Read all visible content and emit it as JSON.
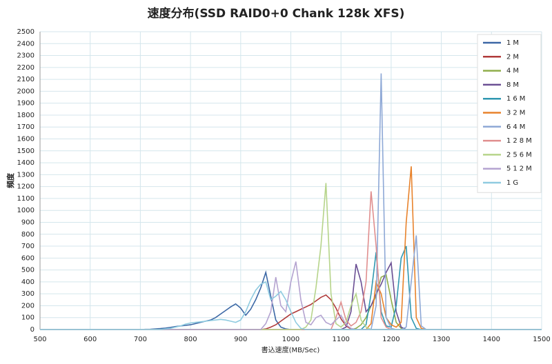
{
  "chart_data": {
    "type": "line",
    "title": "速度分布(SSD RAID0+0 Chank 128k XFS)",
    "x_label": "書込速度(MB/Sec)",
    "y_label": "頻度",
    "x": [
      500,
      510,
      520,
      530,
      540,
      550,
      560,
      570,
      580,
      590,
      600,
      610,
      620,
      630,
      640,
      650,
      660,
      670,
      680,
      690,
      700,
      710,
      720,
      730,
      740,
      750,
      760,
      770,
      780,
      790,
      800,
      810,
      820,
      830,
      840,
      850,
      860,
      870,
      880,
      890,
      900,
      910,
      920,
      930,
      940,
      950,
      960,
      970,
      980,
      990,
      1000,
      1010,
      1020,
      1030,
      1040,
      1050,
      1060,
      1070,
      1080,
      1090,
      1100,
      1110,
      1120,
      1130,
      1140,
      1150,
      1160,
      1170,
      1180,
      1190,
      1200,
      1210,
      1220,
      1230,
      1240,
      1250,
      1260,
      1270,
      1280,
      1290,
      1300,
      1310,
      1320,
      1330,
      1340,
      1350,
      1360,
      1370,
      1380,
      1390,
      1400,
      1410,
      1420,
      1430,
      1440,
      1450,
      1460,
      1470,
      1480,
      1490,
      1500
    ],
    "xlim": [
      500,
      1500
    ],
    "xticks": [
      500,
      600,
      700,
      800,
      900,
      1000,
      1100,
      1200,
      1300,
      1400,
      1500
    ],
    "ylim": [
      0,
      2500
    ],
    "yticks": [
      0,
      100,
      200,
      300,
      400,
      500,
      600,
      700,
      800,
      900,
      1000,
      1100,
      1200,
      1300,
      1400,
      1500,
      1600,
      1700,
      1800,
      1900,
      2000,
      2100,
      2200,
      2300,
      2400,
      2500
    ],
    "grid": true,
    "legend": "top-right",
    "series": [
      {
        "name": "1M",
        "color": "#3b67a5",
        "values": [
          0,
          0,
          0,
          0,
          0,
          0,
          0,
          0,
          0,
          0,
          0,
          0,
          0,
          0,
          0,
          0,
          0,
          0,
          0,
          0,
          0,
          2,
          3,
          5,
          8,
          12,
          18,
          25,
          30,
          35,
          40,
          50,
          60,
          70,
          80,
          100,
          130,
          160,
          190,
          215,
          180,
          120,
          170,
          250,
          350,
          480,
          280,
          80,
          20,
          5,
          0,
          0,
          0,
          0,
          0,
          0,
          0,
          0,
          0,
          0,
          0,
          0,
          0,
          0,
          0,
          0,
          0,
          0,
          0,
          0,
          0,
          0,
          0,
          0,
          0,
          0,
          0,
          0,
          0,
          0,
          0,
          0,
          0,
          0,
          0,
          0,
          0,
          0,
          0,
          0,
          0,
          0,
          0,
          0,
          0,
          0,
          0,
          0,
          0,
          0,
          0
        ]
      },
      {
        "name": "2M",
        "color": "#b03a3a",
        "values": [
          0,
          0,
          0,
          0,
          0,
          0,
          0,
          0,
          0,
          0,
          0,
          0,
          0,
          0,
          0,
          0,
          0,
          0,
          0,
          0,
          0,
          0,
          0,
          0,
          0,
          0,
          0,
          0,
          0,
          0,
          0,
          0,
          0,
          0,
          0,
          0,
          0,
          0,
          0,
          0,
          0,
          0,
          0,
          0,
          0,
          5,
          20,
          40,
          70,
          100,
          130,
          150,
          170,
          190,
          210,
          240,
          270,
          290,
          250,
          180,
          90,
          30,
          5,
          0,
          0,
          0,
          0,
          0,
          0,
          0,
          0,
          0,
          0,
          0,
          0,
          0,
          0,
          0,
          0,
          0,
          0,
          0,
          0,
          0,
          0,
          0,
          0,
          0,
          0,
          0,
          0,
          0,
          0,
          0,
          0,
          0,
          0,
          0,
          0,
          0,
          0
        ]
      },
      {
        "name": "4M",
        "color": "#8fad4a",
        "values": [
          0,
          0,
          0,
          0,
          0,
          0,
          0,
          0,
          0,
          0,
          0,
          0,
          0,
          0,
          0,
          0,
          0,
          0,
          0,
          0,
          0,
          0,
          0,
          0,
          0,
          0,
          0,
          0,
          0,
          0,
          0,
          0,
          0,
          0,
          0,
          0,
          0,
          0,
          0,
          0,
          0,
          0,
          0,
          0,
          0,
          0,
          0,
          0,
          0,
          0,
          0,
          0,
          0,
          0,
          0,
          0,
          0,
          0,
          0,
          0,
          0,
          0,
          0,
          10,
          40,
          100,
          200,
          280,
          440,
          460,
          250,
          60,
          10,
          0,
          0,
          0,
          0,
          0,
          0,
          0,
          0,
          0,
          0,
          0,
          0,
          0,
          0,
          0,
          0,
          0,
          0,
          0,
          0,
          0,
          0,
          0,
          0,
          0,
          0,
          0,
          0
        ]
      },
      {
        "name": "8M",
        "color": "#6a4e93",
        "values": [
          0,
          0,
          0,
          0,
          0,
          0,
          0,
          0,
          0,
          0,
          0,
          0,
          0,
          0,
          0,
          0,
          0,
          0,
          0,
          0,
          0,
          0,
          0,
          0,
          0,
          0,
          0,
          0,
          0,
          0,
          0,
          0,
          0,
          0,
          0,
          0,
          0,
          0,
          0,
          0,
          0,
          0,
          0,
          0,
          0,
          0,
          0,
          0,
          0,
          0,
          0,
          0,
          0,
          0,
          0,
          0,
          0,
          0,
          0,
          0,
          0,
          20,
          150,
          550,
          400,
          150,
          200,
          300,
          380,
          480,
          560,
          150,
          20,
          0,
          0,
          0,
          0,
          0,
          0,
          0,
          0,
          0,
          0,
          0,
          0,
          0,
          0,
          0,
          0,
          0,
          0,
          0,
          0,
          0,
          0,
          0,
          0,
          0,
          0,
          0,
          0
        ]
      },
      {
        "name": "16M",
        "color": "#2e97b0",
        "values": [
          0,
          0,
          0,
          0,
          0,
          0,
          0,
          0,
          0,
          0,
          0,
          0,
          0,
          0,
          0,
          0,
          0,
          0,
          0,
          0,
          0,
          0,
          0,
          0,
          0,
          0,
          0,
          0,
          0,
          0,
          0,
          0,
          0,
          0,
          0,
          0,
          0,
          0,
          0,
          0,
          0,
          0,
          0,
          0,
          0,
          0,
          0,
          0,
          0,
          0,
          0,
          0,
          0,
          0,
          0,
          0,
          0,
          0,
          0,
          0,
          0,
          0,
          0,
          0,
          0,
          40,
          300,
          650,
          150,
          30,
          20,
          200,
          600,
          700,
          100,
          10,
          0,
          0,
          0,
          0,
          0,
          0,
          0,
          0,
          0,
          0,
          0,
          0,
          0,
          0,
          0,
          0,
          0,
          0,
          0,
          0,
          0,
          0,
          0,
          0,
          0
        ]
      },
      {
        "name": "32M",
        "color": "#e8822b",
        "values": [
          0,
          0,
          0,
          0,
          0,
          0,
          0,
          0,
          0,
          0,
          0,
          0,
          0,
          0,
          0,
          0,
          0,
          0,
          0,
          0,
          0,
          0,
          0,
          0,
          0,
          0,
          0,
          0,
          0,
          0,
          0,
          0,
          0,
          0,
          0,
          0,
          0,
          0,
          0,
          0,
          0,
          0,
          0,
          0,
          0,
          0,
          0,
          0,
          0,
          0,
          0,
          0,
          0,
          0,
          0,
          0,
          0,
          0,
          0,
          0,
          0,
          0,
          0,
          0,
          0,
          0,
          50,
          400,
          300,
          100,
          40,
          20,
          60,
          900,
          1370,
          100,
          10,
          0,
          0,
          0,
          0,
          0,
          0,
          0,
          0,
          0,
          0,
          0,
          0,
          0,
          0,
          0,
          0,
          0,
          0,
          0,
          0,
          0,
          0,
          0,
          0
        ]
      },
      {
        "name": "64M",
        "color": "#8ea8d6",
        "values": [
          0,
          0,
          0,
          0,
          0,
          0,
          0,
          0,
          0,
          0,
          0,
          0,
          0,
          0,
          0,
          0,
          0,
          0,
          0,
          0,
          0,
          0,
          0,
          0,
          0,
          0,
          0,
          0,
          0,
          0,
          0,
          0,
          0,
          0,
          0,
          0,
          0,
          0,
          0,
          0,
          0,
          0,
          0,
          0,
          0,
          0,
          0,
          0,
          0,
          0,
          0,
          0,
          0,
          0,
          0,
          0,
          0,
          0,
          0,
          0,
          0,
          0,
          0,
          0,
          0,
          0,
          0,
          200,
          2150,
          100,
          10,
          0,
          0,
          20,
          400,
          790,
          30,
          0,
          0,
          0,
          0,
          0,
          0,
          0,
          0,
          0,
          0,
          0,
          0,
          0,
          0,
          0,
          0,
          0,
          0,
          0,
          0,
          0,
          0,
          0,
          0
        ]
      },
      {
        "name": "128M",
        "color": "#e08e8e",
        "values": [
          0,
          0,
          0,
          0,
          0,
          0,
          0,
          0,
          0,
          0,
          0,
          0,
          0,
          0,
          0,
          0,
          0,
          0,
          0,
          0,
          0,
          0,
          0,
          0,
          0,
          0,
          0,
          0,
          0,
          0,
          0,
          0,
          0,
          0,
          0,
          0,
          0,
          0,
          0,
          0,
          0,
          0,
          0,
          0,
          0,
          0,
          0,
          0,
          0,
          0,
          0,
          0,
          0,
          0,
          0,
          0,
          0,
          0,
          0,
          100,
          230,
          80,
          30,
          60,
          150,
          400,
          1160,
          700,
          100,
          20,
          0,
          0,
          0,
          0,
          0,
          0,
          0,
          0,
          0,
          0,
          0,
          0,
          0,
          0,
          0,
          0,
          0,
          0,
          0,
          0,
          0,
          0,
          0,
          0,
          0,
          0,
          0,
          0,
          0,
          0,
          0
        ]
      },
      {
        "name": "256M",
        "color": "#b6d48a",
        "values": [
          0,
          0,
          0,
          0,
          0,
          0,
          0,
          0,
          0,
          0,
          0,
          0,
          0,
          0,
          0,
          0,
          0,
          0,
          0,
          0,
          0,
          0,
          0,
          0,
          0,
          0,
          0,
          0,
          0,
          0,
          0,
          0,
          0,
          0,
          0,
          0,
          0,
          0,
          0,
          0,
          0,
          0,
          0,
          0,
          0,
          0,
          0,
          0,
          0,
          0,
          0,
          0,
          0,
          20,
          80,
          350,
          700,
          1230,
          300,
          50,
          20,
          60,
          200,
          300,
          80,
          20,
          0,
          0,
          0,
          0,
          0,
          0,
          0,
          0,
          0,
          0,
          0,
          0,
          0,
          0,
          0,
          0,
          0,
          0,
          0,
          0,
          0,
          0,
          0,
          0,
          0,
          0,
          0,
          0,
          0,
          0,
          0,
          0,
          0,
          0,
          0
        ]
      },
      {
        "name": "512M",
        "color": "#b4a3d0",
        "values": [
          0,
          0,
          0,
          0,
          0,
          0,
          0,
          0,
          0,
          0,
          0,
          0,
          0,
          0,
          0,
          0,
          0,
          0,
          0,
          0,
          0,
          0,
          0,
          0,
          0,
          0,
          0,
          0,
          0,
          0,
          0,
          0,
          0,
          0,
          0,
          0,
          0,
          0,
          0,
          0,
          0,
          0,
          0,
          0,
          0,
          50,
          150,
          440,
          200,
          150,
          400,
          570,
          250,
          60,
          40,
          100,
          120,
          60,
          40,
          80,
          120,
          40,
          10,
          0,
          0,
          0,
          0,
          0,
          0,
          0,
          0,
          0,
          0,
          0,
          0,
          0,
          0,
          0,
          0,
          0,
          0,
          0,
          0,
          0,
          0,
          0,
          0,
          0,
          0,
          0,
          0,
          0,
          0,
          0,
          0,
          0,
          0,
          0,
          0,
          0,
          0
        ]
      },
      {
        "name": "1G",
        "color": "#8fcbe0",
        "values": [
          0,
          0,
          0,
          0,
          0,
          0,
          0,
          0,
          0,
          0,
          0,
          0,
          0,
          0,
          0,
          0,
          0,
          0,
          0,
          0,
          0,
          0,
          0,
          0,
          0,
          5,
          10,
          20,
          30,
          45,
          55,
          60,
          65,
          70,
          75,
          80,
          85,
          80,
          70,
          60,
          80,
          150,
          250,
          330,
          380,
          400,
          250,
          280,
          320,
          250,
          150,
          60,
          10,
          0,
          0,
          0,
          0,
          0,
          0,
          0,
          0,
          0,
          0,
          0,
          0,
          0,
          0,
          0,
          0,
          0,
          0,
          0,
          0,
          0,
          0,
          0,
          0,
          0,
          0,
          0,
          0,
          0,
          0,
          0,
          0,
          0,
          0,
          0,
          0,
          0,
          0,
          0,
          0,
          0,
          0,
          0,
          0,
          0,
          0,
          0,
          0
        ]
      }
    ]
  }
}
